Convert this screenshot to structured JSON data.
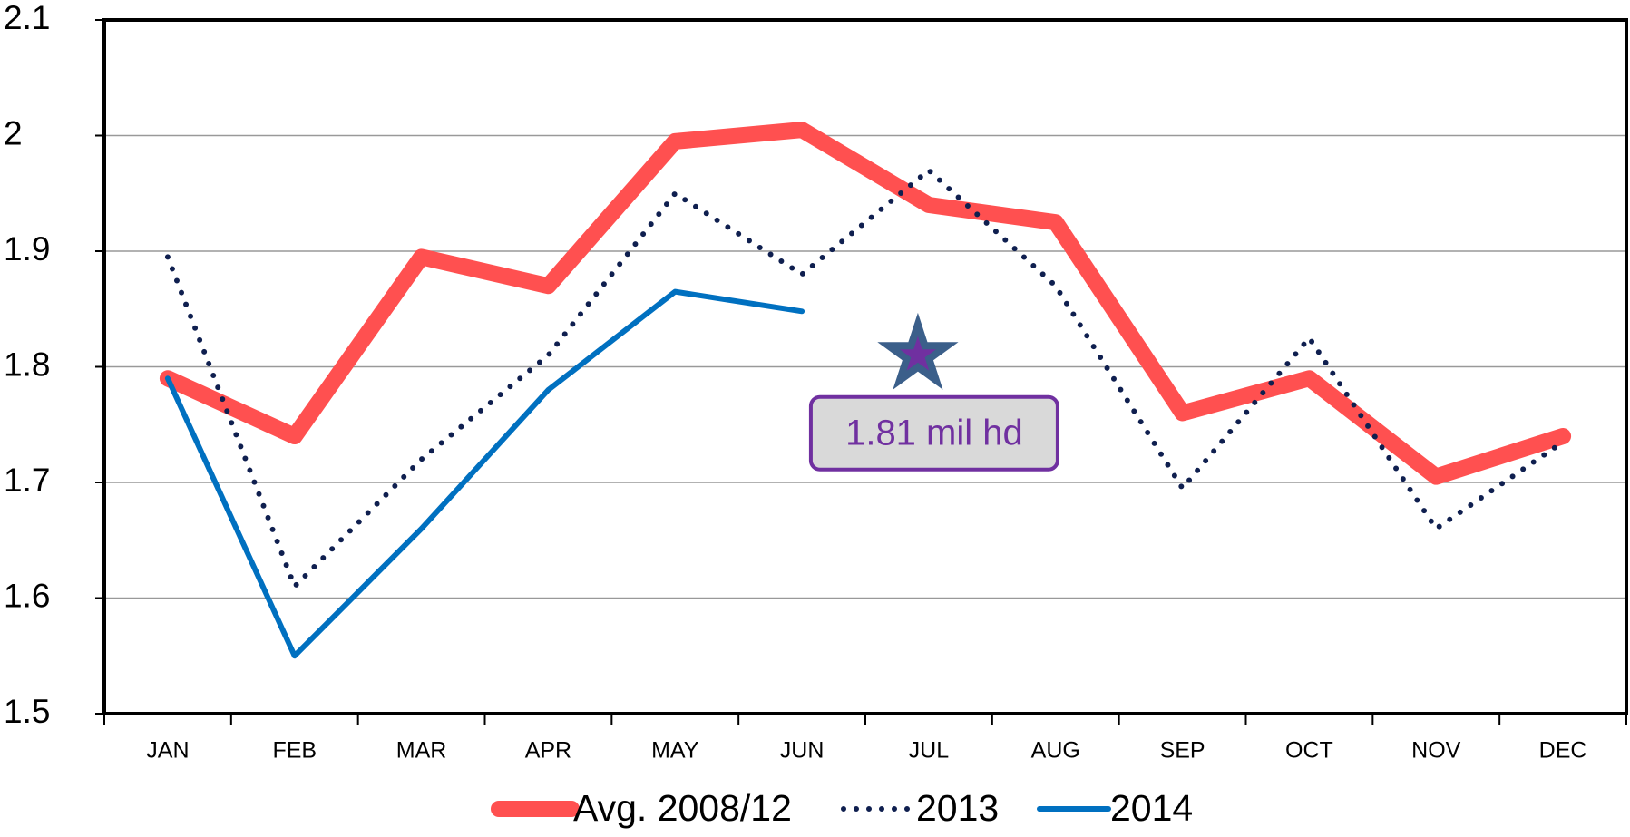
{
  "chart_data": {
    "type": "line",
    "categories": [
      "JAN",
      "FEB",
      "MAR",
      "APR",
      "MAY",
      "JUN",
      "JUL",
      "AUG",
      "SEP",
      "OCT",
      "NOV",
      "DEC"
    ],
    "series": [
      {
        "name": "Avg. 2008/12",
        "color": "#ff5050",
        "values": [
          1.79,
          1.74,
          1.895,
          1.87,
          1.995,
          2.005,
          1.94,
          1.925,
          1.76,
          1.79,
          1.705,
          1.74
        ]
      },
      {
        "name": "2013",
        "color": "#0f1f4f",
        "values": [
          1.895,
          1.61,
          1.72,
          1.81,
          1.95,
          1.88,
          1.97,
          1.87,
          1.695,
          1.825,
          1.66,
          1.735
        ]
      },
      {
        "name": "2014",
        "color": "#0070c0",
        "values": [
          1.79,
          1.55,
          1.66,
          1.78,
          1.865,
          1.848,
          null,
          null,
          null,
          null,
          null,
          null
        ]
      }
    ],
    "ylim": [
      1.5,
      2.1
    ],
    "yticks": [
      1.5,
      1.6,
      1.7,
      1.8,
      1.9,
      2,
      2.1
    ],
    "grid": true,
    "legend": "bottom",
    "annotation": {
      "text": "1.81 mil hd",
      "category": "JUL",
      "value": 1.81,
      "color": "#7030a0"
    }
  }
}
